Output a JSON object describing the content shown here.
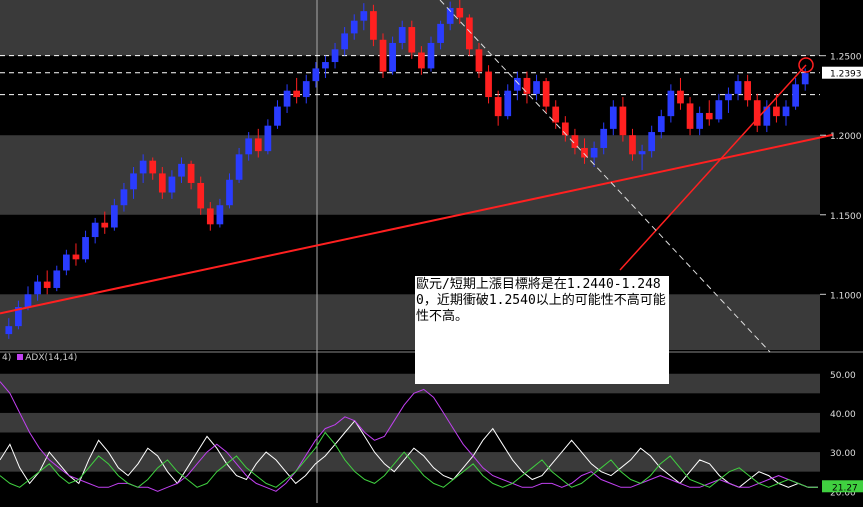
{
  "chart_data": [
    {
      "type": "candlestick",
      "title": "",
      "ylim": [
        1.065,
        1.285
      ],
      "y_ticks": [
        "1.2500",
        "1.2000",
        "1.1500",
        "1.1000"
      ],
      "last_price": "1.2393",
      "horizontal_levels": [
        1.25,
        1.2393,
        1.2255
      ],
      "colors": {
        "up": "#2a3cff",
        "down": "#ff2020",
        "trendline": "#ff2020",
        "background_band": "#3a3a3a"
      },
      "candles": [
        [
          1.075,
          1.085,
          1.072,
          1.08
        ],
        [
          1.08,
          1.096,
          1.078,
          1.092
        ],
        [
          1.092,
          1.105,
          1.09,
          1.1
        ],
        [
          1.1,
          1.112,
          1.096,
          1.108
        ],
        [
          1.108,
          1.115,
          1.1,
          1.104
        ],
        [
          1.104,
          1.118,
          1.102,
          1.115
        ],
        [
          1.115,
          1.128,
          1.112,
          1.125
        ],
        [
          1.125,
          1.132,
          1.118,
          1.122
        ],
        [
          1.122,
          1.14,
          1.12,
          1.136
        ],
        [
          1.136,
          1.148,
          1.132,
          1.145
        ],
        [
          1.145,
          1.152,
          1.138,
          1.142
        ],
        [
          1.142,
          1.16,
          1.14,
          1.156
        ],
        [
          1.156,
          1.17,
          1.152,
          1.166
        ],
        [
          1.166,
          1.18,
          1.16,
          1.176
        ],
        [
          1.176,
          1.188,
          1.17,
          1.184
        ],
        [
          1.184,
          1.186,
          1.172,
          1.176
        ],
        [
          1.176,
          1.18,
          1.16,
          1.164
        ],
        [
          1.164,
          1.178,
          1.16,
          1.174
        ],
        [
          1.174,
          1.186,
          1.17,
          1.182
        ],
        [
          1.182,
          1.184,
          1.166,
          1.17
        ],
        [
          1.17,
          1.174,
          1.15,
          1.154
        ],
        [
          1.154,
          1.158,
          1.14,
          1.144
        ],
        [
          1.144,
          1.16,
          1.142,
          1.156
        ],
        [
          1.156,
          1.176,
          1.154,
          1.172
        ],
        [
          1.172,
          1.192,
          1.17,
          1.188
        ],
        [
          1.188,
          1.202,
          1.184,
          1.198
        ],
        [
          1.198,
          1.204,
          1.186,
          1.19
        ],
        [
          1.19,
          1.21,
          1.188,
          1.206
        ],
        [
          1.206,
          1.222,
          1.204,
          1.218
        ],
        [
          1.218,
          1.232,
          1.214,
          1.228
        ],
        [
          1.228,
          1.236,
          1.22,
          1.224
        ],
        [
          1.224,
          1.238,
          1.22,
          1.234
        ],
        [
          1.234,
          1.246,
          1.23,
          1.242
        ],
        [
          1.242,
          1.25,
          1.236,
          1.246
        ],
        [
          1.246,
          1.258,
          1.242,
          1.254
        ],
        [
          1.254,
          1.268,
          1.25,
          1.264
        ],
        [
          1.264,
          1.276,
          1.26,
          1.272
        ],
        [
          1.272,
          1.283,
          1.266,
          1.278
        ],
        [
          1.278,
          1.282,
          1.256,
          1.26
        ],
        [
          1.26,
          1.264,
          1.236,
          1.24
        ],
        [
          1.24,
          1.262,
          1.238,
          1.258
        ],
        [
          1.258,
          1.272,
          1.254,
          1.268
        ],
        [
          1.268,
          1.272,
          1.248,
          1.252
        ],
        [
          1.252,
          1.256,
          1.238,
          1.242
        ],
        [
          1.242,
          1.262,
          1.24,
          1.258
        ],
        [
          1.258,
          1.272,
          1.254,
          1.27
        ],
        [
          1.27,
          1.284,
          1.266,
          1.28
        ],
        [
          1.28,
          1.285,
          1.27,
          1.274
        ],
        [
          1.274,
          1.276,
          1.25,
          1.254
        ],
        [
          1.254,
          1.258,
          1.236,
          1.24
        ],
        [
          1.24,
          1.244,
          1.22,
          1.224
        ],
        [
          1.224,
          1.228,
          1.206,
          1.212
        ],
        [
          1.212,
          1.232,
          1.21,
          1.228
        ],
        [
          1.228,
          1.24,
          1.222,
          1.236
        ],
        [
          1.236,
          1.24,
          1.22,
          1.226
        ],
        [
          1.226,
          1.238,
          1.222,
          1.234
        ],
        [
          1.234,
          1.236,
          1.214,
          1.218
        ],
        [
          1.218,
          1.222,
          1.204,
          1.208
        ],
        [
          1.208,
          1.212,
          1.196,
          1.2
        ],
        [
          1.2,
          1.204,
          1.188,
          1.192
        ],
        [
          1.192,
          1.198,
          1.182,
          1.186
        ],
        [
          1.186,
          1.196,
          1.18,
          1.192
        ],
        [
          1.192,
          1.208,
          1.188,
          1.204
        ],
        [
          1.204,
          1.222,
          1.2,
          1.218
        ],
        [
          1.218,
          1.224,
          1.196,
          1.2
        ],
        [
          1.2,
          1.204,
          1.184,
          1.188
        ],
        [
          1.188,
          1.194,
          1.178,
          1.19
        ],
        [
          1.19,
          1.206,
          1.186,
          1.202
        ],
        [
          1.202,
          1.216,
          1.198,
          1.212
        ],
        [
          1.212,
          1.232,
          1.208,
          1.228
        ],
        [
          1.228,
          1.236,
          1.216,
          1.22
        ],
        [
          1.22,
          1.224,
          1.2,
          1.204
        ],
        [
          1.204,
          1.218,
          1.2,
          1.214
        ],
        [
          1.214,
          1.222,
          1.206,
          1.21
        ],
        [
          1.21,
          1.226,
          1.208,
          1.222
        ],
        [
          1.222,
          1.23,
          1.214,
          1.226
        ],
        [
          1.226,
          1.238,
          1.222,
          1.234
        ],
        [
          1.234,
          1.238,
          1.218,
          1.222
        ],
        [
          1.222,
          1.226,
          1.202,
          1.206
        ],
        [
          1.206,
          1.222,
          1.202,
          1.218
        ],
        [
          1.218,
          1.226,
          1.208,
          1.212
        ],
        [
          1.212,
          1.222,
          1.206,
          1.218
        ],
        [
          1.218,
          1.236,
          1.216,
          1.232
        ],
        [
          1.232,
          1.242,
          1.228,
          1.239
        ]
      ]
    },
    {
      "type": "line",
      "y_ticks": [
        "50.00",
        "40.00",
        "30.00",
        "20.00"
      ],
      "ylim": [
        17,
        53
      ],
      "legend": [
        "ADX(14,14)"
      ],
      "last_value": "21.27",
      "series": [
        {
          "color": "#ffffff",
          "values": [
            28,
            32,
            26,
            22,
            25,
            30,
            27,
            24,
            22,
            28,
            33,
            30,
            26,
            24,
            27,
            31,
            29,
            25,
            22,
            26,
            30,
            34,
            31,
            27,
            24,
            23,
            27,
            30,
            28,
            25,
            22,
            24,
            27,
            29,
            32,
            35,
            38,
            34,
            30,
            27,
            25,
            28,
            31,
            29,
            26,
            24,
            23,
            26,
            29,
            33,
            36,
            32,
            28,
            25,
            23,
            24,
            27,
            30,
            33,
            30,
            27,
            25,
            24,
            26,
            28,
            31,
            29,
            26,
            24,
            22,
            25,
            28,
            27,
            24,
            22,
            21,
            23,
            25,
            24,
            22,
            21,
            22,
            21,
            21
          ]
        },
        {
          "color": "#c040f0",
          "values": [
            48,
            45,
            40,
            35,
            31,
            28,
            26,
            24,
            23,
            22,
            21,
            21,
            22,
            22,
            21,
            21,
            20,
            21,
            22,
            24,
            27,
            30,
            32,
            30,
            27,
            24,
            22,
            21,
            20,
            22,
            25,
            29,
            33,
            36,
            37,
            39,
            38,
            35,
            33,
            34,
            38,
            42,
            45,
            46,
            44,
            40,
            36,
            32,
            29,
            26,
            24,
            23,
            22,
            21,
            21,
            22,
            22,
            21,
            22,
            24,
            25,
            23,
            22,
            21,
            21,
            22,
            23,
            24,
            23,
            22,
            21,
            21,
            22,
            23,
            22,
            21,
            21,
            22,
            23,
            24,
            23,
            22,
            21,
            21
          ]
        },
        {
          "color": "#40d040",
          "values": [
            24,
            22,
            21,
            23,
            25,
            27,
            24,
            22,
            23,
            26,
            29,
            27,
            24,
            22,
            21,
            23,
            26,
            28,
            25,
            23,
            21,
            22,
            25,
            27,
            29,
            26,
            24,
            22,
            21,
            23,
            25,
            28,
            31,
            35,
            32,
            28,
            25,
            23,
            22,
            24,
            27,
            30,
            27,
            24,
            22,
            21,
            23,
            25,
            27,
            24,
            22,
            21,
            22,
            24,
            26,
            28,
            25,
            23,
            21,
            22,
            24,
            26,
            28,
            25,
            23,
            22,
            24,
            27,
            29,
            26,
            23,
            22,
            21,
            23,
            25,
            26,
            24,
            22,
            21,
            22,
            23,
            22,
            21,
            21
          ]
        }
      ]
    }
  ],
  "annotation_text": "歐元/短期上漲目標將是在1.2440-1.2480，近期衝破1.2540以上的可能性不高可能性不高。",
  "indicator_legend": {
    "prefix": "4)",
    "label": "ADX(14,14)"
  }
}
